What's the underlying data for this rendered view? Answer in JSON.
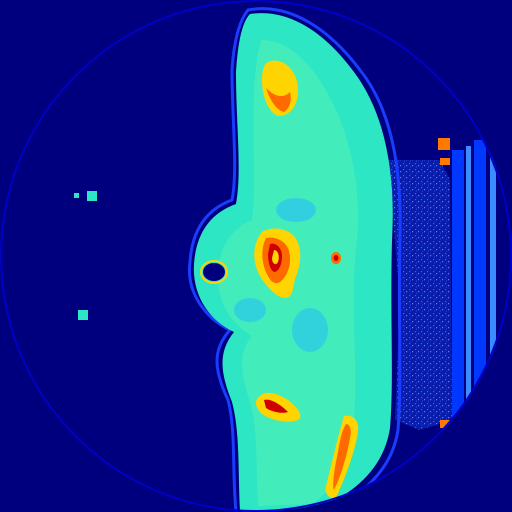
{
  "image": {
    "colormap": "jet",
    "colors": {
      "background": "#00007f",
      "fov_edge": "#0000c8",
      "body_outline": "#1a3cff",
      "soft_tissue": "#2ce6c4",
      "soft_tissue_light": "#58f0b4",
      "fat": "#22b8ff",
      "bone_edge": "#ffd400",
      "bone_mid": "#ff6a00",
      "bone_core": "#d00000",
      "air": "#00007f",
      "table": "#0038ff",
      "table_light": "#3b8cff",
      "marker": "#ff7a00"
    }
  }
}
